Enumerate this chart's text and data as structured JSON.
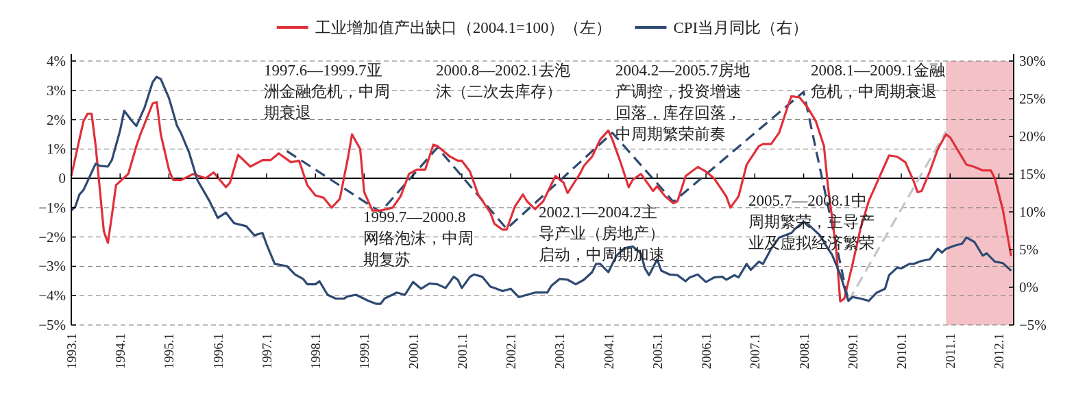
{
  "chart_data": {
    "type": "line",
    "xlim": [
      "1993-01",
      "2012-04-20"
    ],
    "xticks": [
      {
        "value": "1993-01",
        "label": "1993.1"
      },
      {
        "value": "1994-01",
        "label": "1994.1"
      },
      {
        "value": "1995-01",
        "label": "1995.1"
      },
      {
        "value": "1996-01",
        "label": "1996.1"
      },
      {
        "value": "1997-01",
        "label": "1997.1"
      },
      {
        "value": "1998-01",
        "label": "1998.1"
      },
      {
        "value": "1999-01",
        "label": "1999.1"
      },
      {
        "value": "2000-01",
        "label": "2000.1"
      },
      {
        "value": "2001-01",
        "label": "2001.1"
      },
      {
        "value": "2002-01",
        "label": "2002.1"
      },
      {
        "value": "2003-01",
        "label": "2003.1"
      },
      {
        "value": "2004-01",
        "label": "2004.1"
      },
      {
        "value": "2005-01",
        "label": "2005.1"
      },
      {
        "value": "2006-01",
        "label": "2006.1"
      },
      {
        "value": "2007-01",
        "label": "2007.1"
      },
      {
        "value": "2008-01",
        "label": "2008.1"
      },
      {
        "value": "2009-01",
        "label": "2009.1"
      },
      {
        "value": "2010-01",
        "label": "2010.1"
      },
      {
        "value": "2011-01",
        "label": "2011.1"
      },
      {
        "value": "2012-01",
        "label": "2012.1"
      }
    ],
    "ylim": [
      -5,
      4
    ],
    "yticks": [
      {
        "value": 4,
        "label": "4%"
      },
      {
        "value": 3,
        "label": "3%"
      },
      {
        "value": 2,
        "label": "2%"
      },
      {
        "value": 1,
        "label": "1%"
      },
      {
        "value": 0,
        "label": "0"
      },
      {
        "value": -1,
        "label": "−1%"
      },
      {
        "value": -2,
        "label": "−2%"
      },
      {
        "value": -3,
        "label": "−3%"
      },
      {
        "value": -4,
        "label": "−4%"
      },
      {
        "value": -5,
        "label": "−5%"
      }
    ],
    "y2lim": [
      -5,
      30
    ],
    "y2ticks": [
      {
        "value": 30,
        "label": "30%"
      },
      {
        "value": 25,
        "label": "25%"
      },
      {
        "value": 20,
        "label": "20%"
      },
      {
        "value": 15,
        "label": "15%"
      },
      {
        "value": 10,
        "label": "10%"
      },
      {
        "value": 5,
        "label": "5%"
      },
      {
        "value": 0,
        "label": "0%"
      },
      {
        "value": -5,
        "label": "−5%"
      }
    ],
    "grid": "y",
    "legend": "top",
    "ref_lines": [
      {
        "axis": "y",
        "value": 0,
        "color": "#000000"
      }
    ],
    "bands": [
      {
        "axis": "x",
        "from": "2010-12",
        "to": "2012-04-20",
        "color": "#f4c2c6"
      }
    ],
    "series": [
      {
        "name": "工业增加值产出缺口（2004.1=100）（左）",
        "color": "#e0303a",
        "x": [
          "1993-01",
          "1993-04",
          "1993-05",
          "1993-06",
          "1993-07",
          "1993-09",
          "1993-10",
          "1993-11",
          "1993-12",
          "1994-03",
          "1994-05",
          "1994-06",
          "1994-09",
          "1994-10",
          "1994-11",
          "1995-01",
          "1995-02",
          "1995-04",
          "1995-07",
          "1995-10",
          "1995-12",
          "1996-03",
          "1996-04",
          "1996-06",
          "1996-09",
          "1996-12",
          "1997-02",
          "1997-04",
          "1997-07",
          "1997-09",
          "1997-11",
          "1998-01",
          "1998-03",
          "1998-05",
          "1998-07",
          "1998-09",
          "1998-10",
          "1998-12",
          "1999-01",
          "1999-03",
          "1999-05",
          "1999-08",
          "1999-10",
          "1999-12",
          "2000-02",
          "2000-04",
          "2000-06",
          "2000-07",
          "2000-10",
          "2000-12",
          "2001-01",
          "2001-03",
          "2001-05",
          "2001-08",
          "2001-09",
          "2001-11",
          "2001-12",
          "2002-02",
          "2002-04",
          "2002-05",
          "2002-07",
          "2002-09",
          "2002-12",
          "2003-02",
          "2003-03",
          "2003-06",
          "2003-07",
          "2003-09",
          "2003-11",
          "2004-01",
          "2004-02",
          "2004-04",
          "2004-06",
          "2004-07",
          "2004-09",
          "2004-12",
          "2005-01",
          "2005-03",
          "2005-05",
          "2005-06",
          "2005-08",
          "2005-11",
          "2006-01",
          "2006-03",
          "2006-06",
          "2006-07",
          "2006-09",
          "2006-11",
          "2007-02",
          "2007-03",
          "2007-05",
          "2007-07",
          "2007-09",
          "2007-10",
          "2007-12",
          "2008-02",
          "2008-04",
          "2008-06",
          "2008-07",
          "2008-09",
          "2008-10",
          "2008-11",
          "2009-01",
          "2009-03",
          "2009-05",
          "2009-07",
          "2009-10",
          "2009-12",
          "2010-02",
          "2010-04",
          "2010-05",
          "2010-06",
          "2010-08",
          "2010-10",
          "2010-12",
          "2011-01",
          "2011-04",
          "2011-05",
          "2011-07",
          "2011-09",
          "2011-11",
          "2011-12",
          "2012-02",
          "2012-04"
        ],
        "values": [
          0.08,
          1.95,
          2.2,
          2.2,
          1.1,
          -1.8,
          -2.2,
          -1.25,
          -0.23,
          0.15,
          1.1,
          1.5,
          2.55,
          2.6,
          1.5,
          0.3,
          -0.05,
          -0.06,
          0.15,
          0,
          0.2,
          -0.3,
          -0.15,
          0.8,
          0.4,
          0.62,
          0.62,
          0.85,
          0.55,
          0.6,
          -0.23,
          -0.58,
          -0.66,
          -1.0,
          -0.7,
          0.7,
          1.5,
          1.0,
          -0.47,
          -1.1,
          -1.1,
          -1.0,
          -0.6,
          0.15,
          0.3,
          0.3,
          1.15,
          1.1,
          0.75,
          0.6,
          0.6,
          0.23,
          -0.55,
          -1.17,
          -1.55,
          -1.75,
          -1.75,
          -0.97,
          -0.55,
          -0.78,
          -1.05,
          -0.78,
          0.08,
          -0.15,
          -0.5,
          0.15,
          0.43,
          0.74,
          1.32,
          1.63,
          1.32,
          0.55,
          -0.3,
          -0.05,
          0.15,
          -0.43,
          -0.27,
          -0.62,
          -0.85,
          -0.78,
          0.08,
          0.39,
          0.23,
          0,
          -0.62,
          -1.0,
          -0.62,
          0.47,
          1.1,
          1.17,
          1.17,
          1.56,
          2.41,
          2.8,
          2.76,
          2.41,
          1.95,
          1.1,
          -0.3,
          -2.4,
          -4.2,
          -4.1,
          -2.94,
          -1.7,
          -0.78,
          -0.15,
          0.78,
          0.74,
          0.55,
          -0.08,
          -0.47,
          -0.43,
          0.23,
          1.0,
          1.5,
          1.4,
          0.7,
          0.47,
          0.39,
          0.27,
          0.27,
          0,
          -1.09,
          -2.65
        ]
      },
      {
        "name": "CPI当月同比（右）",
        "color": "#2e4a72",
        "axis": "y2",
        "x": [
          "1993-01",
          "1993-02",
          "1993-03",
          "1993-04",
          "1993-07",
          "1993-08",
          "1993-10",
          "1993-11",
          "1994-01",
          "1994-02",
          "1994-04",
          "1994-05",
          "1994-07",
          "1994-09",
          "1994-10",
          "1994-11",
          "1995-01",
          "1995-03",
          "1995-04",
          "1995-06",
          "1995-08",
          "1995-11",
          "1996-01",
          "1996-03",
          "1996-05",
          "1996-08",
          "1996-10",
          "1996-12",
          "1997-01",
          "1997-03",
          "1997-06",
          "1997-08",
          "1997-10",
          "1997-11",
          "1998-01",
          "1998-02",
          "1998-04",
          "1998-06",
          "1998-08",
          "1998-09",
          "1998-11",
          "1999-02",
          "1999-04",
          "1999-05",
          "1999-06",
          "1999-09",
          "1999-11",
          "2000-01",
          "2000-03",
          "2000-05",
          "2000-07",
          "2000-09",
          "2000-11",
          "2000-12",
          "2001-01",
          "2001-03",
          "2001-04",
          "2001-06",
          "2001-08",
          "2001-09",
          "2001-11",
          "2002-01",
          "2002-03",
          "2002-05",
          "2002-07",
          "2002-10",
          "2002-11",
          "2003-01",
          "2003-03",
          "2003-05",
          "2003-07",
          "2003-09",
          "2003-10",
          "2003-11",
          "2004-01",
          "2004-03",
          "2004-05",
          "2004-07",
          "2004-09",
          "2004-10",
          "2004-11",
          "2005-01",
          "2005-02",
          "2005-04",
          "2005-06",
          "2005-08",
          "2005-09",
          "2005-11",
          "2006-01",
          "2006-03",
          "2006-05",
          "2006-06",
          "2006-08",
          "2006-09",
          "2006-11",
          "2006-12",
          "2007-02",
          "2007-03",
          "2007-05",
          "2007-07",
          "2007-10",
          "2007-11",
          "2008-01",
          "2008-02",
          "2008-05",
          "2008-07",
          "2008-08",
          "2008-10",
          "2008-12",
          "2009-01",
          "2009-03",
          "2009-05",
          "2009-07",
          "2009-09",
          "2009-10",
          "2009-12",
          "2010-01",
          "2010-03",
          "2010-04",
          "2010-06",
          "2010-08",
          "2010-10",
          "2010-11",
          "2010-12",
          "2011-02",
          "2011-04",
          "2011-05",
          "2011-07",
          "2011-09",
          "2011-10",
          "2011-12",
          "2012-02",
          "2012-04"
        ],
        "values": [
          10.2,
          10.7,
          12.3,
          12.9,
          16.4,
          16.1,
          16.0,
          16.9,
          20.8,
          23.4,
          22.0,
          21.4,
          23.8,
          27.2,
          27.9,
          27.6,
          25.1,
          21.4,
          20.4,
          17.8,
          14.2,
          11.4,
          9.2,
          9.9,
          8.5,
          8.1,
          6.9,
          7.2,
          5.7,
          3.1,
          2.8,
          1.7,
          1.1,
          0.4,
          0.4,
          0.8,
          -1.0,
          -1.5,
          -1.5,
          -1.2,
          -1.0,
          -1.8,
          -2.2,
          -2.2,
          -1.5,
          -0.7,
          -1.0,
          0.7,
          -0.2,
          0.5,
          0.4,
          -0.1,
          1.4,
          1.0,
          -0.1,
          1.4,
          1.7,
          1.4,
          0.1,
          -0.1,
          -0.5,
          -0.2,
          -1.3,
          -1.0,
          -0.7,
          -0.7,
          0.2,
          1.1,
          1.0,
          0.4,
          1.0,
          2.0,
          3.1,
          3.1,
          2.0,
          4.2,
          5.2,
          5.4,
          4.5,
          2.5,
          1.6,
          3.7,
          2.2,
          1.7,
          1.6,
          0.8,
          1.3,
          1.7,
          0.7,
          1.3,
          1.4,
          1.0,
          1.6,
          1.3,
          3.1,
          2.3,
          3.4,
          3.1,
          5.1,
          6.6,
          7.2,
          7.8,
          8.7,
          8.4,
          6.9,
          5.1,
          4.3,
          1.7,
          -1.8,
          -1.3,
          -1.5,
          -1.8,
          -0.7,
          -0.2,
          1.6,
          2.6,
          2.5,
          3.1,
          3.1,
          3.5,
          3.7,
          5.1,
          4.6,
          5.1,
          5.5,
          5.8,
          6.6,
          6.0,
          4.2,
          4.5,
          3.4,
          3.2,
          2.2
        ]
      },
      {
        "color": "#2e4a72",
        "line_style": "dashed",
        "x": [
          "1997-06",
          "1999-05",
          "2000-07",
          "2001-12",
          "2004-02",
          "2005-05",
          "2008-01",
          "2008-12"
        ],
        "values": [
          0.93,
          -1.15,
          1.05,
          -1.72,
          1.55,
          -0.8,
          2.95,
          -4.19
        ]
      },
      {
        "color": "#c4c4cc",
        "line_style": "dashed",
        "x": [
          "2008-12",
          "2010-12"
        ],
        "values": [
          -4.19,
          1.6
        ]
      }
    ],
    "annotations": [
      "1997.6—1999.7亚洲金融危机，中周期衰退",
      "2000.8—2002.1去泡沫（二次去库存）",
      "2004.2—2005.7房地产调控，投资增速回落，库存回落，中周期繁荣前奏",
      "2008.1—2009.1金融危机，中周期衰退",
      "1999.7—2000.8网络泡沫，中周期复苏",
      "2002.1—2004.2主导产业（房地产）启动，中周期加速",
      "2005.7—2008.1中周期繁荣，主导产业及虚拟经济繁荣"
    ]
  }
}
